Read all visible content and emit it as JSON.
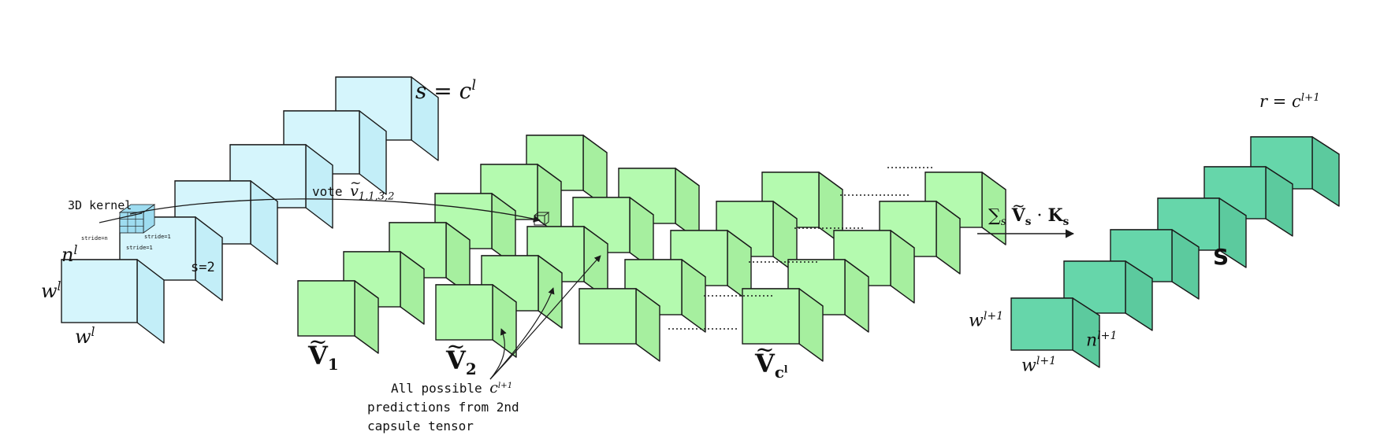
{
  "colors": {
    "input_face": "#d5f5fc",
    "input_side": "#c3eef8",
    "input_top": "#e3f9fd",
    "vote_face": "#b4faaf",
    "vote_side": "#a6ef9f",
    "vote_top": "#c6fdc0",
    "out_face": "#66d6aa",
    "out_side": "#5cca9e",
    "out_top": "#79deb6",
    "stroke": "#1a1a1a",
    "kernel": "#9edcf0"
  },
  "input": {
    "top_label": "s = c",
    "top_label_sup": "l",
    "s2_label": "s=2",
    "n_label": "n",
    "n_sup": "l",
    "w_side_label": "w",
    "w_side_sup": "l",
    "w_bottom_label": "w",
    "w_bottom_sup": "l",
    "kernel_label": "3D kernel",
    "stride_left": "stride=n",
    "stride_right": "stride=1",
    "stride_bottom": "stride=1"
  },
  "vote": {
    "prefix": "vote ",
    "symbol": "v",
    "subscript": "1,1,3,2"
  },
  "groups": [
    {
      "letter": "V",
      "sub": "1",
      "sub_sup": ""
    },
    {
      "letter": "V",
      "sub": "2",
      "sub_sup": ""
    },
    {
      "letter": "V",
      "sub": "c",
      "sub_sup": "l"
    }
  ],
  "annotation": {
    "line1": "All possible ",
    "line1_math": "c",
    "line1_sup": "l+1",
    "line2": "predictions from 2nd",
    "line3": "capsule tensor"
  },
  "sum": {
    "sigma": "∑",
    "sigma_sub": "s",
    "v": "V",
    "v_sub": "s",
    "dot": " · ",
    "k": "K",
    "k_sub": "s"
  },
  "output": {
    "r_label": "r = c",
    "r_sup": "l+1",
    "s_label": "S",
    "w_side_label": "w",
    "w_side_sup": "l+1",
    "n_label": "n",
    "n_sup": "l+1",
    "w_bottom_label": "w",
    "w_bottom_sup": "l+1"
  }
}
